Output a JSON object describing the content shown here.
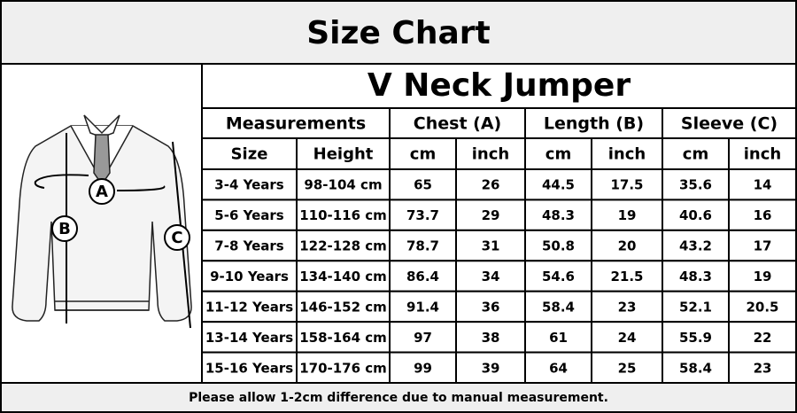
{
  "header": {
    "title": "Size Chart"
  },
  "product": "V Neck Jumper",
  "table": {
    "groups": [
      "Measurements",
      "Chest (A)",
      "Length (B)",
      "Sleeve (C)"
    ],
    "columns": [
      "Size",
      "Height",
      "cm",
      "inch",
      "cm",
      "inch",
      "cm",
      "inch"
    ],
    "rows": [
      [
        "3-4 Years",
        "98-104 cm",
        "65",
        "26",
        "44.5",
        "17.5",
        "35.6",
        "14"
      ],
      [
        "5-6 Years",
        "110-116 cm",
        "73.7",
        "29",
        "48.3",
        "19",
        "40.6",
        "16"
      ],
      [
        "7-8 Years",
        "122-128 cm",
        "78.7",
        "31",
        "50.8",
        "20",
        "43.2",
        "17"
      ],
      [
        "9-10 Years",
        "134-140 cm",
        "86.4",
        "34",
        "54.6",
        "21.5",
        "48.3",
        "19"
      ],
      [
        "11-12 Years",
        "146-152 cm",
        "91.4",
        "36",
        "58.4",
        "23",
        "52.1",
        "20.5"
      ],
      [
        "13-14 Years",
        "158-164 cm",
        "97",
        "38",
        "61",
        "24",
        "55.9",
        "22"
      ],
      [
        "15-16 Years",
        "170-176 cm",
        "99",
        "39",
        "64",
        "25",
        "58.4",
        "23"
      ]
    ]
  },
  "illustration": {
    "labels": [
      "A",
      "B",
      "C"
    ]
  },
  "footer": "Please allow 1-2cm difference due to manual measurement."
}
